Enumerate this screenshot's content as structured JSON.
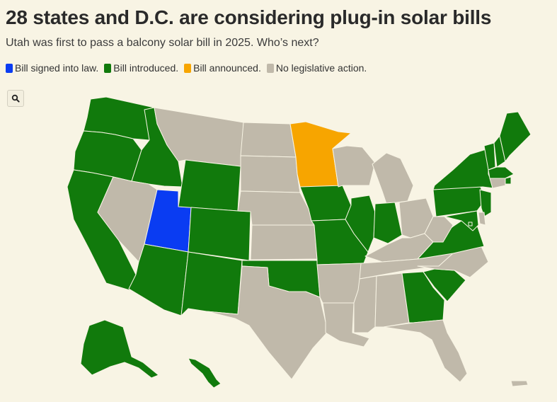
{
  "header": {
    "title": "28 states and D.C. are considering plug-in solar bills",
    "subtitle": "Utah was first to pass a balcony solar bill in 2025. Who’s next?"
  },
  "legend": [
    {
      "label": "Bill signed into law.",
      "color": "#0a3cf2"
    },
    {
      "label": "Bill introduced.",
      "color": "#117a0c"
    },
    {
      "label": "Bill announced.",
      "color": "#f7a500"
    },
    {
      "label": "No legislative action.",
      "color": "#c0b9aa"
    }
  ],
  "controls": {
    "search_icon": "search-icon"
  },
  "status_colors": {
    "signed": "#0a3cf2",
    "introduced": "#117a0c",
    "announced": "#f7a500",
    "none": "#c0b9aa"
  },
  "map": {
    "states": {
      "WA": "introduced",
      "OR": "introduced",
      "CA": "introduced",
      "ID": "introduced",
      "NV": "none",
      "UT": "signed",
      "AZ": "introduced",
      "MT": "none",
      "WY": "introduced",
      "CO": "introduced",
      "NM": "introduced",
      "ND": "none",
      "SD": "none",
      "NE": "none",
      "KS": "none",
      "OK": "introduced",
      "TX": "none",
      "MN": "announced",
      "IA": "introduced",
      "MO": "introduced",
      "AR": "none",
      "LA": "none",
      "WI": "none",
      "IL": "introduced",
      "MI": "none",
      "IN": "introduced",
      "OH": "none",
      "KY": "none",
      "TN": "none",
      "MS": "none",
      "AL": "none",
      "GA": "introduced",
      "FL": "none",
      "SC": "introduced",
      "NC": "none",
      "VA": "introduced",
      "WV": "none",
      "PA": "introduced",
      "NY": "introduced",
      "VT": "introduced",
      "NH": "introduced",
      "ME": "introduced",
      "MA": "introduced",
      "RI": "introduced",
      "CT": "none",
      "NJ": "introduced",
      "DE": "none",
      "MD": "introduced",
      "DC": "introduced",
      "AK": "introduced",
      "HI": "introduced",
      "PR": "none"
    }
  }
}
